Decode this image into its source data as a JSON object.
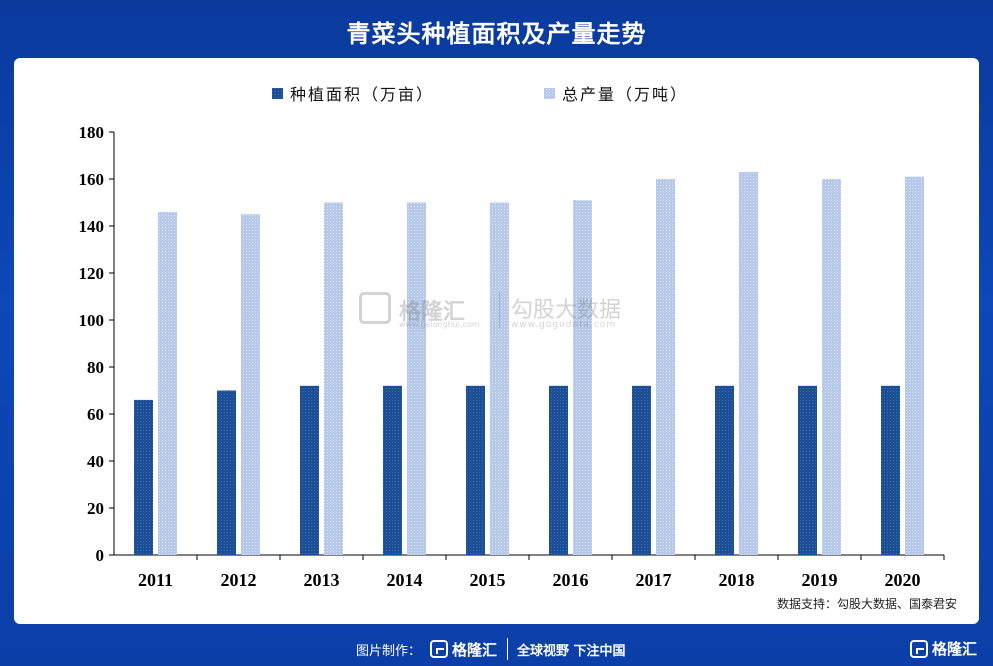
{
  "title": "青菜头种植面积及产量走势",
  "source": "数据支持：勾股大数据、国泰君安",
  "watermark": {
    "brand": "格隆汇",
    "brand_url": "www.gelonghui.com",
    "data_brand": "勾股大数据",
    "data_url": "www.gogudata.com"
  },
  "footer": {
    "label": "图片制作：",
    "brand": "格隆汇",
    "slogan": "全球视野 下注中国",
    "corner_brand": "格隆汇"
  },
  "colors": {
    "area": "#1c4f96",
    "output": "#b7c9e8"
  },
  "chart_data": {
    "type": "bar",
    "categories": [
      "2011",
      "2012",
      "2013",
      "2014",
      "2015",
      "2016",
      "2017",
      "2018",
      "2019",
      "2020"
    ],
    "series": [
      {
        "name": "种植面积（万亩）",
        "values": [
          66,
          70,
          72,
          72,
          72,
          72,
          72,
          72,
          72,
          72
        ]
      },
      {
        "name": "总产量（万吨）",
        "values": [
          146,
          145,
          150,
          150,
          150,
          151,
          160,
          163,
          160,
          161
        ]
      }
    ],
    "yticks": [
      "0",
      "20",
      "40",
      "60",
      "80",
      "100",
      "120",
      "140",
      "160",
      "180"
    ],
    "ylim": [
      0,
      180
    ],
    "legend_position": "top-center",
    "grid": false
  }
}
